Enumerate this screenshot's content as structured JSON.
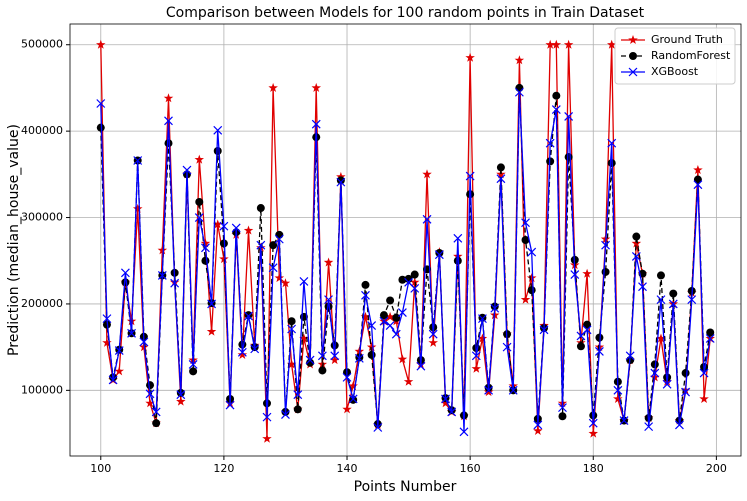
{
  "chart_data": {
    "type": "line",
    "title": "Comparison between Models for 100 random points in Train Dataset",
    "xlabel": "Points Number",
    "ylabel": "Prediction (median_house_value)",
    "x": [
      100,
      101,
      102,
      103,
      104,
      105,
      106,
      107,
      108,
      109,
      110,
      111,
      112,
      113,
      114,
      115,
      116,
      117,
      118,
      119,
      120,
      121,
      122,
      123,
      124,
      125,
      126,
      127,
      128,
      129,
      130,
      131,
      132,
      133,
      134,
      135,
      136,
      137,
      138,
      139,
      140,
      141,
      142,
      143,
      144,
      145,
      146,
      147,
      148,
      149,
      150,
      151,
      152,
      153,
      154,
      155,
      156,
      157,
      158,
      159,
      160,
      161,
      162,
      163,
      164,
      165,
      166,
      167,
      168,
      169,
      170,
      171,
      172,
      173,
      174,
      175,
      176,
      177,
      178,
      179,
      180,
      181,
      182,
      183,
      184,
      185,
      186,
      187,
      188,
      189,
      190,
      191,
      192,
      193,
      194,
      195,
      196,
      197,
      198,
      199
    ],
    "series": [
      {
        "name": "Ground Truth",
        "color": "#e00000",
        "marker": "star",
        "linestyle": "solid",
        "values": [
          500000,
          155000,
          112000,
          122000,
          225000,
          180000,
          310000,
          150000,
          85000,
          62000,
          262000,
          438000,
          225000,
          87000,
          350000,
          135000,
          367000,
          270000,
          168000,
          292000,
          252000,
          85000,
          280000,
          141000,
          285000,
          152000,
          265000,
          44000,
          450000,
          230000,
          224000,
          130000,
          78000,
          160000,
          130000,
          450000,
          130000,
          248000,
          135000,
          347000,
          78000,
          105000,
          145000,
          185000,
          150000,
          60000,
          180000,
          185000,
          180000,
          136000,
          110000,
          225000,
          130000,
          350000,
          155000,
          260000,
          85000,
          75000,
          255000,
          70000,
          485000,
          125000,
          160000,
          98000,
          187000,
          350000,
          165000,
          105000,
          482000,
          205000,
          230000,
          53000,
          175000,
          500000,
          500000,
          85000,
          500000,
          245000,
          155000,
          235000,
          50000,
          150000,
          275000,
          500000,
          90000,
          65000,
          135000,
          270000,
          235000,
          68000,
          115000,
          160000,
          110000,
          200000,
          65000,
          100000,
          213000,
          355000,
          90000,
          160000
        ]
      },
      {
        "name": "RandomForest",
        "color": "#000000",
        "marker": "circle",
        "linestyle": "dashed",
        "values": [
          404000,
          176000,
          115000,
          147000,
          225000,
          166000,
          366000,
          162000,
          106000,
          62000,
          233000,
          386000,
          236000,
          97000,
          350000,
          122000,
          318000,
          250000,
          201000,
          377000,
          270000,
          90000,
          283000,
          153000,
          187000,
          150000,
          311000,
          85000,
          268000,
          280000,
          75000,
          180000,
          78000,
          185000,
          132000,
          393000,
          123000,
          197000,
          152000,
          343000,
          121000,
          89000,
          138000,
          222000,
          141000,
          61000,
          187000,
          204000,
          184000,
          228000,
          229000,
          234000,
          135000,
          240000,
          173000,
          259000,
          91000,
          77000,
          250000,
          71000,
          327000,
          149000,
          184000,
          103000,
          197000,
          358000,
          165000,
          100000,
          450000,
          274000,
          216000,
          67000,
          172000,
          365000,
          441000,
          70000,
          370000,
          251000,
          151000,
          176000,
          71000,
          161000,
          237000,
          363000,
          110000,
          65000,
          135000,
          278000,
          235000,
          68000,
          130000,
          233000,
          115000,
          212000,
          65000,
          120000,
          215000,
          344000,
          127000,
          167000
        ]
      },
      {
        "name": "XGBoost",
        "color": "#0000ff",
        "marker": "x",
        "linestyle": "solid",
        "values": [
          432000,
          183000,
          112000,
          146000,
          236000,
          166000,
          366000,
          156000,
          96000,
          75000,
          233000,
          412000,
          224000,
          95000,
          355000,
          130000,
          300000,
          265000,
          200000,
          401000,
          290000,
          83000,
          288000,
          144000,
          186000,
          148000,
          268000,
          69000,
          242000,
          275000,
          72000,
          171000,
          95000,
          226000,
          135000,
          408000,
          140000,
          205000,
          140000,
          341000,
          115000,
          90000,
          137000,
          210000,
          175000,
          57000,
          180000,
          175000,
          165000,
          190000,
          225000,
          218000,
          128000,
          298000,
          165000,
          257000,
          90000,
          75000,
          276000,
          52000,
          348000,
          140000,
          183000,
          100000,
          195000,
          345000,
          150000,
          100000,
          445000,
          294000,
          260000,
          60000,
          170000,
          386000,
          425000,
          80000,
          417000,
          234000,
          163000,
          170000,
          62000,
          145000,
          268000,
          386000,
          100000,
          65000,
          140000,
          255000,
          220000,
          58000,
          120000,
          205000,
          107000,
          200000,
          60000,
          98000,
          205000,
          338000,
          120000,
          160000
        ]
      }
    ],
    "xlim": [
      95,
      204
    ],
    "ylim": [
      24000,
      524000
    ],
    "xticks": [
      100,
      120,
      140,
      160,
      180,
      200
    ],
    "yticks": [
      100000,
      200000,
      300000,
      400000,
      500000
    ],
    "grid": true,
    "legend": "upper right"
  }
}
